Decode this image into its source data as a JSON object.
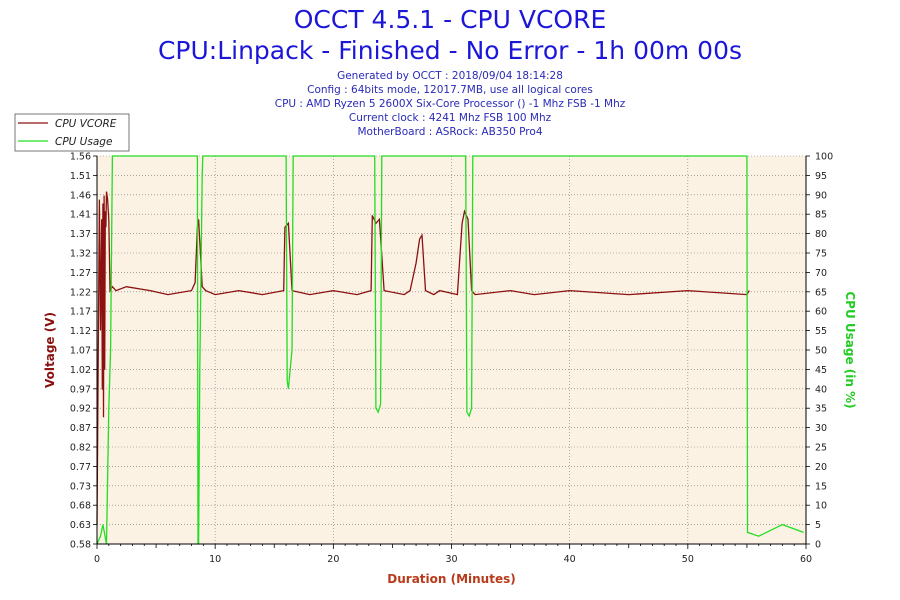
{
  "title": "OCCT 4.5.1 - CPU VCORE",
  "subtitle": "CPU:Linpack - Finished - No Error - 1h 00m 00s",
  "info_lines": [
    "Generated by OCCT : 2018/09/04 18:14:28",
    "Config : 64bits mode, 12017.7MB, use all logical cores",
    "CPU : AMD Ryzen 5 2600X Six-Core Processor () -1 Mhz FSB -1 Mhz",
    "Current clock : 4241 Mhz FSB 100 Mhz",
    "MotherBoard : ASRock: AB350 Pro4"
  ],
  "colors": {
    "vcore": "#8b1010",
    "usage": "#22dd22",
    "plot_bg": "#fbf2e4",
    "grid": "#777777",
    "title": "#1c17d8",
    "info": "#2a2ab8",
    "xlabel": "#b83a1a",
    "left_axis": "#8b1010",
    "right_axis": "#22cc22"
  },
  "chart_data": {
    "type": "line",
    "xlabel": "Duration (Minutes)",
    "ylabel_left": "Voltage (V)",
    "ylabel_right": "CPU Usage (in %)",
    "xlim": [
      0,
      60
    ],
    "x_ticks": [
      "0",
      "10",
      "20",
      "30",
      "40",
      "50",
      "60"
    ],
    "ylim_left": [
      0.58,
      1.56
    ],
    "y_ticks_left": [
      "0.58",
      "0.63",
      "0.68",
      "0.73",
      "0.77",
      "0.82",
      "0.87",
      "0.92",
      "0.97",
      "1.02",
      "1.07",
      "1.12",
      "1.17",
      "1.22",
      "1.27",
      "1.32",
      "1.37",
      "1.41",
      "1.46",
      "1.51",
      "1.56"
    ],
    "ylim_right": [
      0,
      100
    ],
    "y_ticks_right": [
      "0",
      "5",
      "10",
      "15",
      "20",
      "25",
      "30",
      "35",
      "40",
      "45",
      "50",
      "55",
      "60",
      "65",
      "70",
      "75",
      "80",
      "85",
      "90",
      "95",
      "100"
    ],
    "grid": true,
    "legend_position": "top-left",
    "series": [
      {
        "name": "CPU VCORE",
        "axis": "left",
        "x": [
          0,
          0.2,
          0.3,
          0.4,
          0.45,
          0.5,
          0.55,
          0.6,
          0.65,
          0.7,
          0.75,
          0.8,
          0.9,
          1.0,
          1.1,
          1.3,
          1.6,
          2.5,
          4.5,
          6,
          8,
          8.3,
          8.5,
          8.6,
          8.9,
          9.2,
          10,
          12,
          14,
          15.8,
          15.9,
          16.2,
          16.5,
          18,
          20,
          22,
          23.2,
          23.3,
          23.6,
          23.9,
          24.3,
          26,
          26.5,
          27,
          27.3,
          27.5,
          27.8,
          28.5,
          29,
          30.5,
          30.9,
          31.1,
          31.4,
          31.7,
          32,
          35,
          37,
          40,
          45,
          50,
          55,
          55.2
        ],
        "values": [
          0.63,
          1.45,
          1.12,
          1.4,
          0.97,
          1.44,
          0.9,
          1.46,
          1.02,
          1.42,
          1.38,
          1.47,
          1.45,
          1.4,
          1.22,
          1.23,
          1.22,
          1.23,
          1.22,
          1.21,
          1.22,
          1.24,
          1.38,
          1.4,
          1.23,
          1.22,
          1.21,
          1.22,
          1.21,
          1.22,
          1.38,
          1.39,
          1.22,
          1.21,
          1.22,
          1.21,
          1.22,
          1.41,
          1.39,
          1.4,
          1.22,
          1.21,
          1.22,
          1.29,
          1.35,
          1.36,
          1.22,
          1.21,
          1.22,
          1.21,
          1.39,
          1.42,
          1.4,
          1.22,
          1.21,
          1.22,
          1.21,
          1.22,
          1.21,
          1.22,
          1.21,
          1.22
        ]
      },
      {
        "name": "CPU Usage",
        "axis": "right",
        "x": [
          0,
          0.3,
          0.5,
          0.8,
          1.0,
          1.15,
          1.3,
          8.5,
          8.55,
          8.6,
          8.7,
          8.9,
          8.95,
          16.0,
          16.1,
          16.2,
          16.5,
          16.6,
          23.5,
          23.6,
          23.8,
          24.0,
          24.1,
          31.2,
          31.3,
          31.5,
          31.7,
          31.8,
          55.0,
          55.05,
          56,
          58,
          59.8
        ],
        "values": [
          0,
          2,
          5,
          0,
          35,
          50,
          100,
          100,
          0,
          0,
          45,
          95,
          100,
          100,
          42,
          40,
          50,
          100,
          100,
          35,
          34,
          36,
          100,
          100,
          34,
          33,
          35,
          100,
          100,
          3,
          2,
          5,
          3
        ]
      }
    ]
  }
}
